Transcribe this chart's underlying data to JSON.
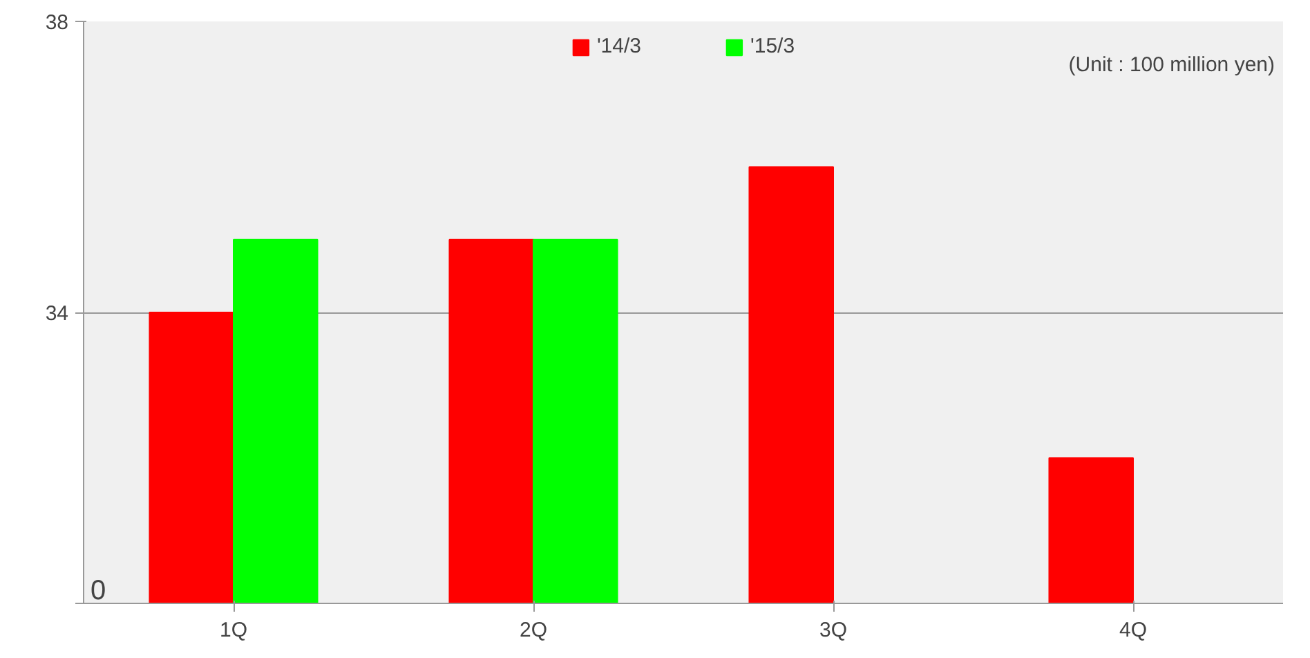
{
  "chart_data": {
    "type": "bar",
    "categories": [
      "1Q",
      "2Q",
      "3Q",
      "4Q"
    ],
    "series": [
      {
        "name": "'14/3",
        "color": "#ff0000",
        "values": [
          34,
          35,
          36,
          32
        ]
      },
      {
        "name": "'15/3",
        "color": "#00ff00",
        "values": [
          35,
          35,
          null,
          null
        ]
      }
    ],
    "ylim": [
      30,
      38
    ],
    "yticks": [
      {
        "value": 30,
        "label": null
      },
      34,
      38
    ],
    "grid": "y",
    "legend": "top",
    "annotations": [
      "(Unit : 100 million yen)",
      "0"
    ]
  }
}
